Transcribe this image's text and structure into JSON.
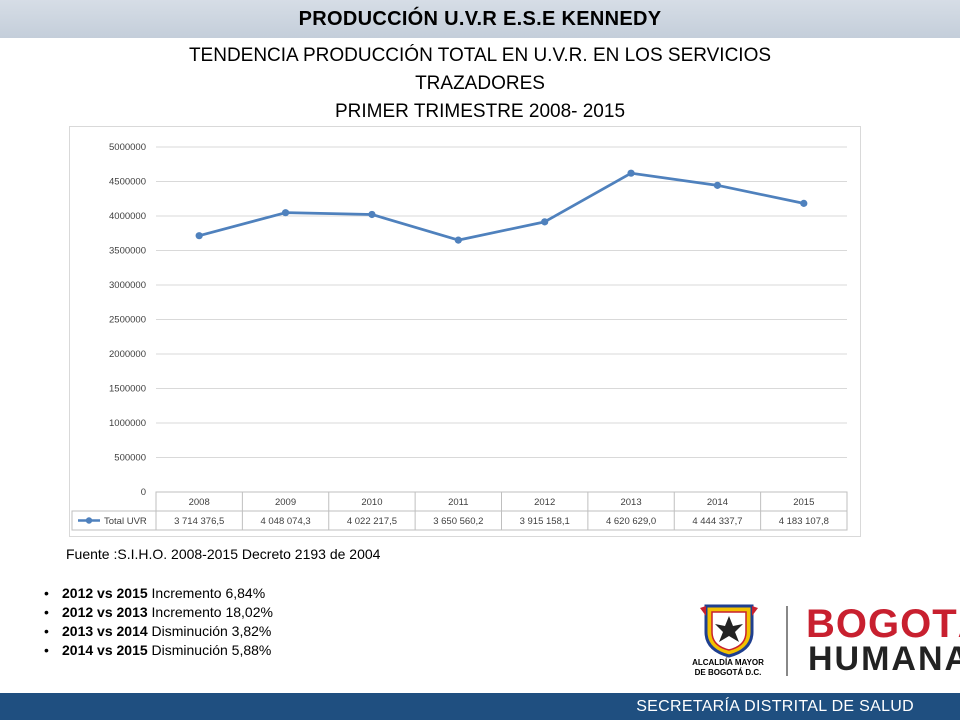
{
  "header": {
    "title": "PRODUCCIÓN  U.V.R E.S.E KENNEDY"
  },
  "subtitle": {
    "line1": "TENDENCIA  PRODUCCIÓN TOTAL EN  U.V.R. EN LOS SERVICIOS",
    "line2": "TRAZADORES",
    "line3": "PRIMER TRIMESTRE 2008- 2015"
  },
  "source": "Fuente :S.I.H.O. 2008-2015  Decreto 2193 de 2004",
  "bullets": [
    {
      "bold": "2012 vs 2015",
      "text": " Incremento 6,84%"
    },
    {
      "bold": "2012 vs 2013",
      "text": " Incremento  18,02%"
    },
    {
      "bold": "2013 vs 2014",
      "text": " Disminución 3,82%"
    },
    {
      "bold": "2014 vs 2015",
      "text": " Disminución 5,88%"
    }
  ],
  "logos": {
    "alcaldia_line1": "ALCALDÍA MAYOR",
    "alcaldia_line2": "DE BOGOTÁ D.C.",
    "bogota_line1": "BOGOTÁ",
    "bogota_line2": "HUMANA"
  },
  "footer": {
    "text": "SECRETARÍA DISTRITAL DE SALUD"
  },
  "colors": {
    "series": "#4f81bd",
    "footer": "#1f4f80",
    "brand_red": "#c8202f"
  },
  "chart_data": {
    "type": "line",
    "title": "",
    "xlabel": "",
    "ylabel": "",
    "categories": [
      "2008",
      "2009",
      "2010",
      "2011",
      "2012",
      "2013",
      "2014",
      "2015"
    ],
    "series": [
      {
        "name": "Total UVR",
        "values": [
          3714376.5,
          4048074.3,
          4022217.5,
          3650560.2,
          3915158.1,
          4620629.0,
          4444337.7,
          4183107.8
        ],
        "labels": [
          "3 714 376,5",
          "4 048 074,3",
          "4 022 217,5",
          "3 650 560,2",
          "3 915 158,1",
          "4 620 629,0",
          "4 444 337,7",
          "4 183 107,8"
        ]
      }
    ],
    "yticks": [
      "0",
      "500000",
      "1000000",
      "1500000",
      "2000000",
      "2500000",
      "3000000",
      "3500000",
      "4000000",
      "4500000",
      "5000000"
    ],
    "ylim": [
      0,
      5000000
    ],
    "grid": true,
    "legend": "data table below chart"
  }
}
